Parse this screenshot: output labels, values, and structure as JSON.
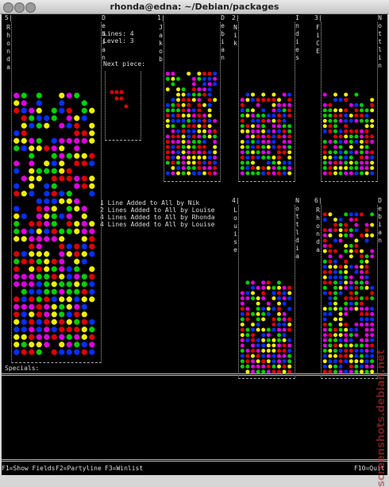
{
  "window_title": "rhonda@edna: ~/Debian/packages",
  "boards": [
    {
      "number": "5|",
      "name": "Rhonda",
      "team": "Debian"
    },
    {
      "number": "1|",
      "name": "Jakob",
      "team": "Debian"
    },
    {
      "number": "2|",
      "name": "Nik",
      "team": "Indies"
    },
    {
      "number": "3|",
      "name": "FiCE",
      "team": "Nottlin"
    },
    {
      "number": "4|",
      "name": "Louise",
      "team": "Nottldia"
    },
    {
      "number": "6|",
      "name": "Rhonda",
      "team": "Debian"
    }
  ],
  "status": {
    "lines": "Lines: 4",
    "level": "Level: 3",
    "next_piece": "Next piece:"
  },
  "messages": [
    "1 Line Added to All by Nik",
    "2 Lines Added to All by Louise",
    "4 Lines Added to All by Rhonda",
    "4 Lines Added to All by Louise"
  ],
  "specials": "Specials:",
  "footer": {
    "f1": "F1=Show Fields",
    "f2": "F2=Partyline",
    "f3": "F3=Winlist",
    "f10": "F10=Quit"
  },
  "watermark": "screenshots.debian.net"
}
